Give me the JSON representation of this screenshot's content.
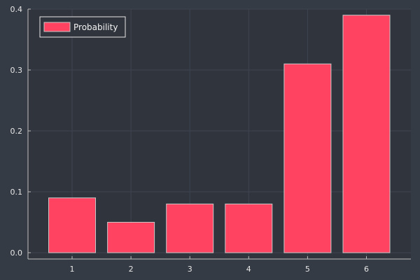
{
  "colors": {
    "figure_background": "#353b45",
    "plot_background": "#30343d",
    "bar_fill": "#ff4361",
    "bar_edge": "#c7c7c7",
    "axis": "#bfbfbf",
    "grid": "#3e4450",
    "text": "#e6e6e6"
  },
  "chart_data": {
    "type": "bar",
    "title": "",
    "xlabel": "",
    "ylabel": "",
    "categories": [
      "1",
      "2",
      "3",
      "4",
      "5",
      "6"
    ],
    "series": [
      {
        "name": "Probability",
        "values": [
          0.09,
          0.05,
          0.08,
          0.08,
          0.31,
          0.39
        ]
      }
    ],
    "ylim": [
      0,
      0.4
    ],
    "y_ticks": [
      0.0,
      0.1,
      0.2,
      0.3,
      0.4
    ],
    "y_tick_labels": [
      "0.0",
      "0.1",
      "0.2",
      "0.3",
      "0.4"
    ],
    "grid": true,
    "legend_position": "top-left"
  }
}
